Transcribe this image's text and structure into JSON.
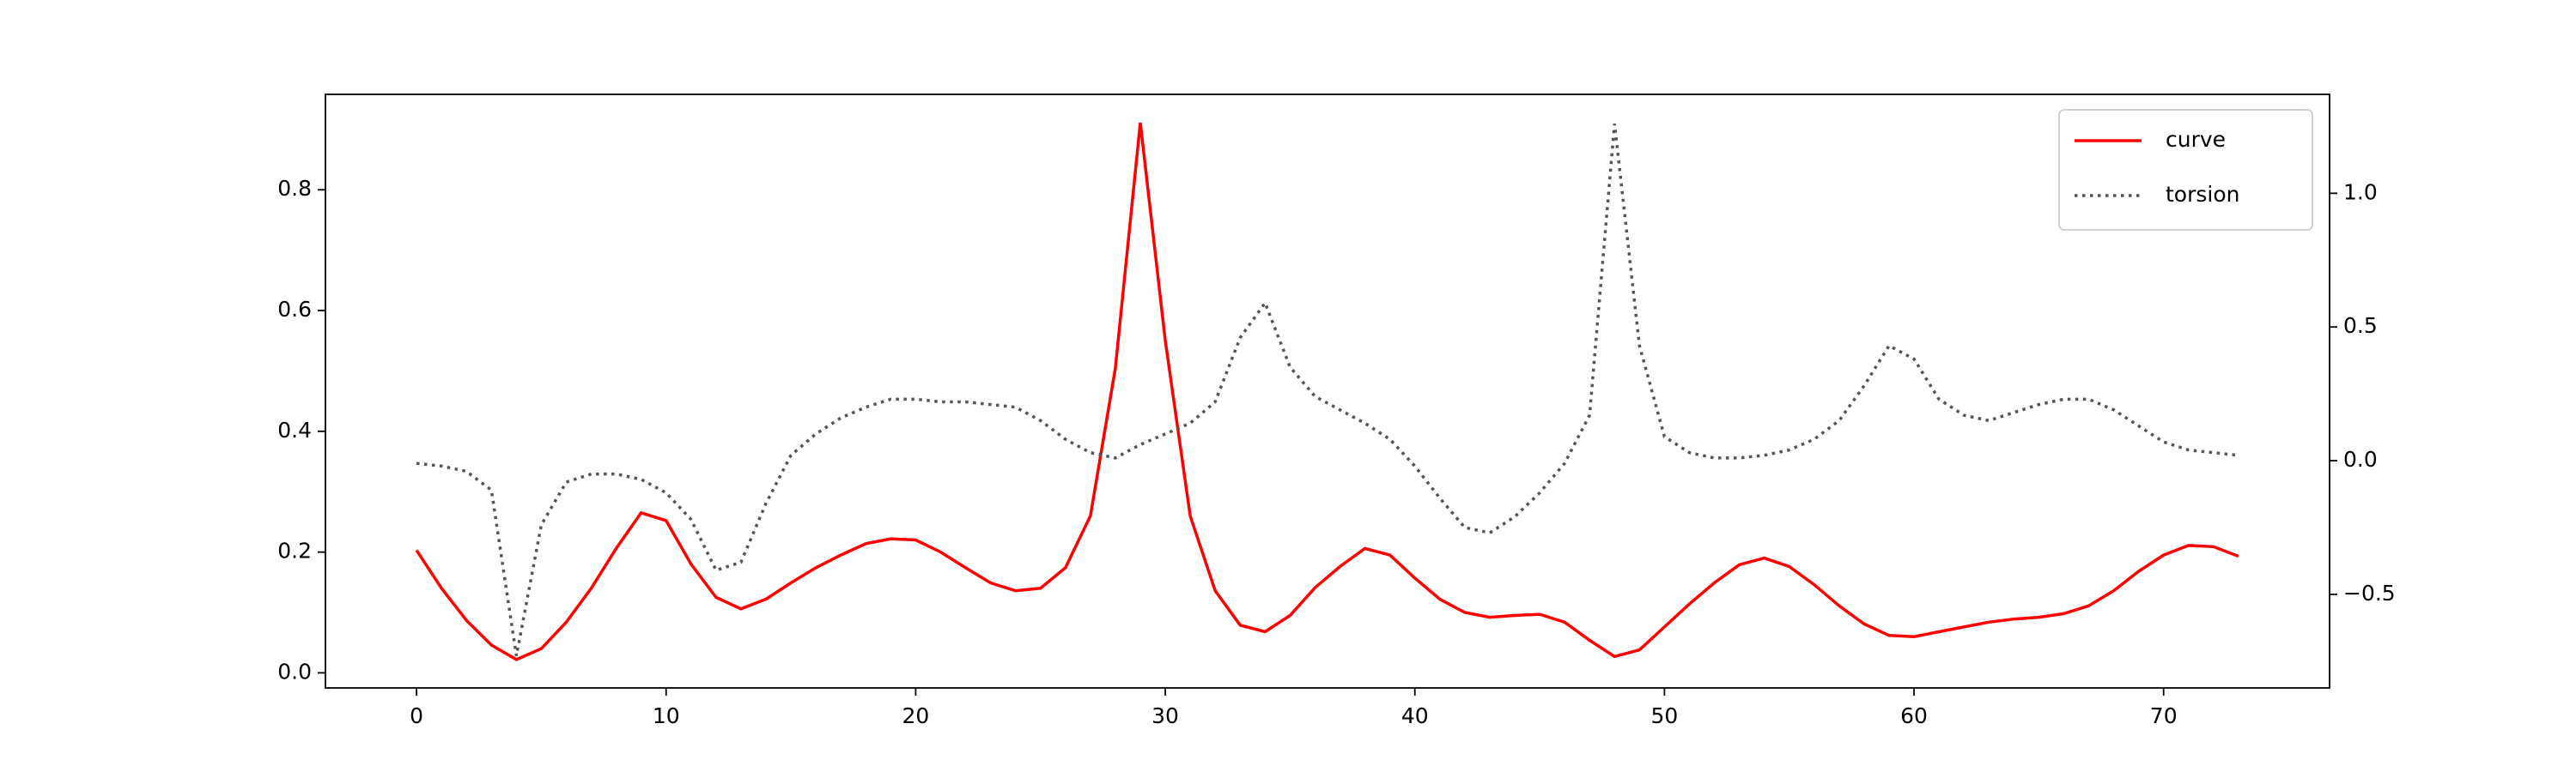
{
  "chart_data": {
    "type": "line",
    "x": [
      0,
      1,
      2,
      3,
      4,
      5,
      6,
      7,
      8,
      9,
      10,
      11,
      12,
      13,
      14,
      15,
      16,
      17,
      18,
      19,
      20,
      21,
      22,
      23,
      24,
      25,
      26,
      27,
      28,
      29,
      30,
      31,
      32,
      33,
      34,
      35,
      36,
      37,
      38,
      39,
      40,
      41,
      42,
      43,
      44,
      45,
      46,
      47,
      48,
      49,
      50,
      51,
      52,
      53,
      54,
      55,
      56,
      57,
      58,
      59,
      60,
      61,
      62,
      63,
      64,
      65,
      66,
      67,
      68,
      69,
      70,
      71,
      72,
      73
    ],
    "series": [
      {
        "name": "curve",
        "color": "#ff0000",
        "style": "solid",
        "axis": "y",
        "values": [
          0.203,
          0.14,
          0.087,
          0.046,
          0.022,
          0.04,
          0.084,
          0.14,
          0.206,
          0.265,
          0.252,
          0.18,
          0.125,
          0.106,
          0.122,
          0.149,
          0.174,
          0.195,
          0.214,
          0.222,
          0.22,
          0.2,
          0.174,
          0.149,
          0.136,
          0.14,
          0.174,
          0.26,
          0.504,
          0.911,
          0.55,
          0.26,
          0.136,
          0.079,
          0.068,
          0.095,
          0.141,
          0.176,
          0.206,
          0.195,
          0.157,
          0.122,
          0.1,
          0.092,
          0.095,
          0.097,
          0.084,
          0.054,
          0.027,
          0.038,
          0.076,
          0.114,
          0.149,
          0.179,
          0.19,
          0.176,
          0.146,
          0.111,
          0.081,
          0.062,
          0.06,
          0.068,
          0.076,
          0.084,
          0.089,
          0.092,
          0.098,
          0.111,
          0.136,
          0.168,
          0.195,
          0.211,
          0.209,
          0.193
        ]
      },
      {
        "name": "torsion",
        "color": "#555555",
        "style": "dotted",
        "axis": "y2",
        "values": [
          -0.01,
          -0.02,
          -0.04,
          -0.11,
          -0.73,
          -0.24,
          -0.08,
          -0.05,
          -0.05,
          -0.07,
          -0.12,
          -0.22,
          -0.41,
          -0.38,
          -0.16,
          0.02,
          0.1,
          0.16,
          0.2,
          0.23,
          0.23,
          0.22,
          0.22,
          0.21,
          0.2,
          0.15,
          0.08,
          0.03,
          0.01,
          0.06,
          0.1,
          0.14,
          0.22,
          0.46,
          0.59,
          0.35,
          0.24,
          0.19,
          0.14,
          0.08,
          -0.02,
          -0.14,
          -0.25,
          -0.27,
          -0.21,
          -0.12,
          -0.01,
          0.17,
          1.26,
          0.43,
          0.09,
          0.03,
          0.01,
          0.01,
          0.02,
          0.04,
          0.08,
          0.15,
          0.28,
          0.43,
          0.38,
          0.23,
          0.17,
          0.15,
          0.18,
          0.21,
          0.23,
          0.23,
          0.19,
          0.13,
          0.07,
          0.04,
          0.03,
          0.02
        ]
      }
    ],
    "xlim": [
      -3.65,
      76.65
    ],
    "xticks": [
      0,
      10,
      20,
      30,
      40,
      50,
      60,
      70
    ],
    "ylim": [
      -0.025,
      0.958
    ],
    "yticks": [
      {
        "value": 0,
        "label": "0.0"
      },
      0.2,
      0.4,
      0.6,
      0.8
    ],
    "y2lim": [
      -0.85,
      1.37
    ],
    "y2ticks": [
      {
        "value": -0.5,
        "label": "−0.5"
      },
      {
        "value": 0,
        "label": "0.0"
      },
      0.5,
      {
        "value": 1,
        "label": "1.0"
      }
    ],
    "legend": "upper right"
  }
}
